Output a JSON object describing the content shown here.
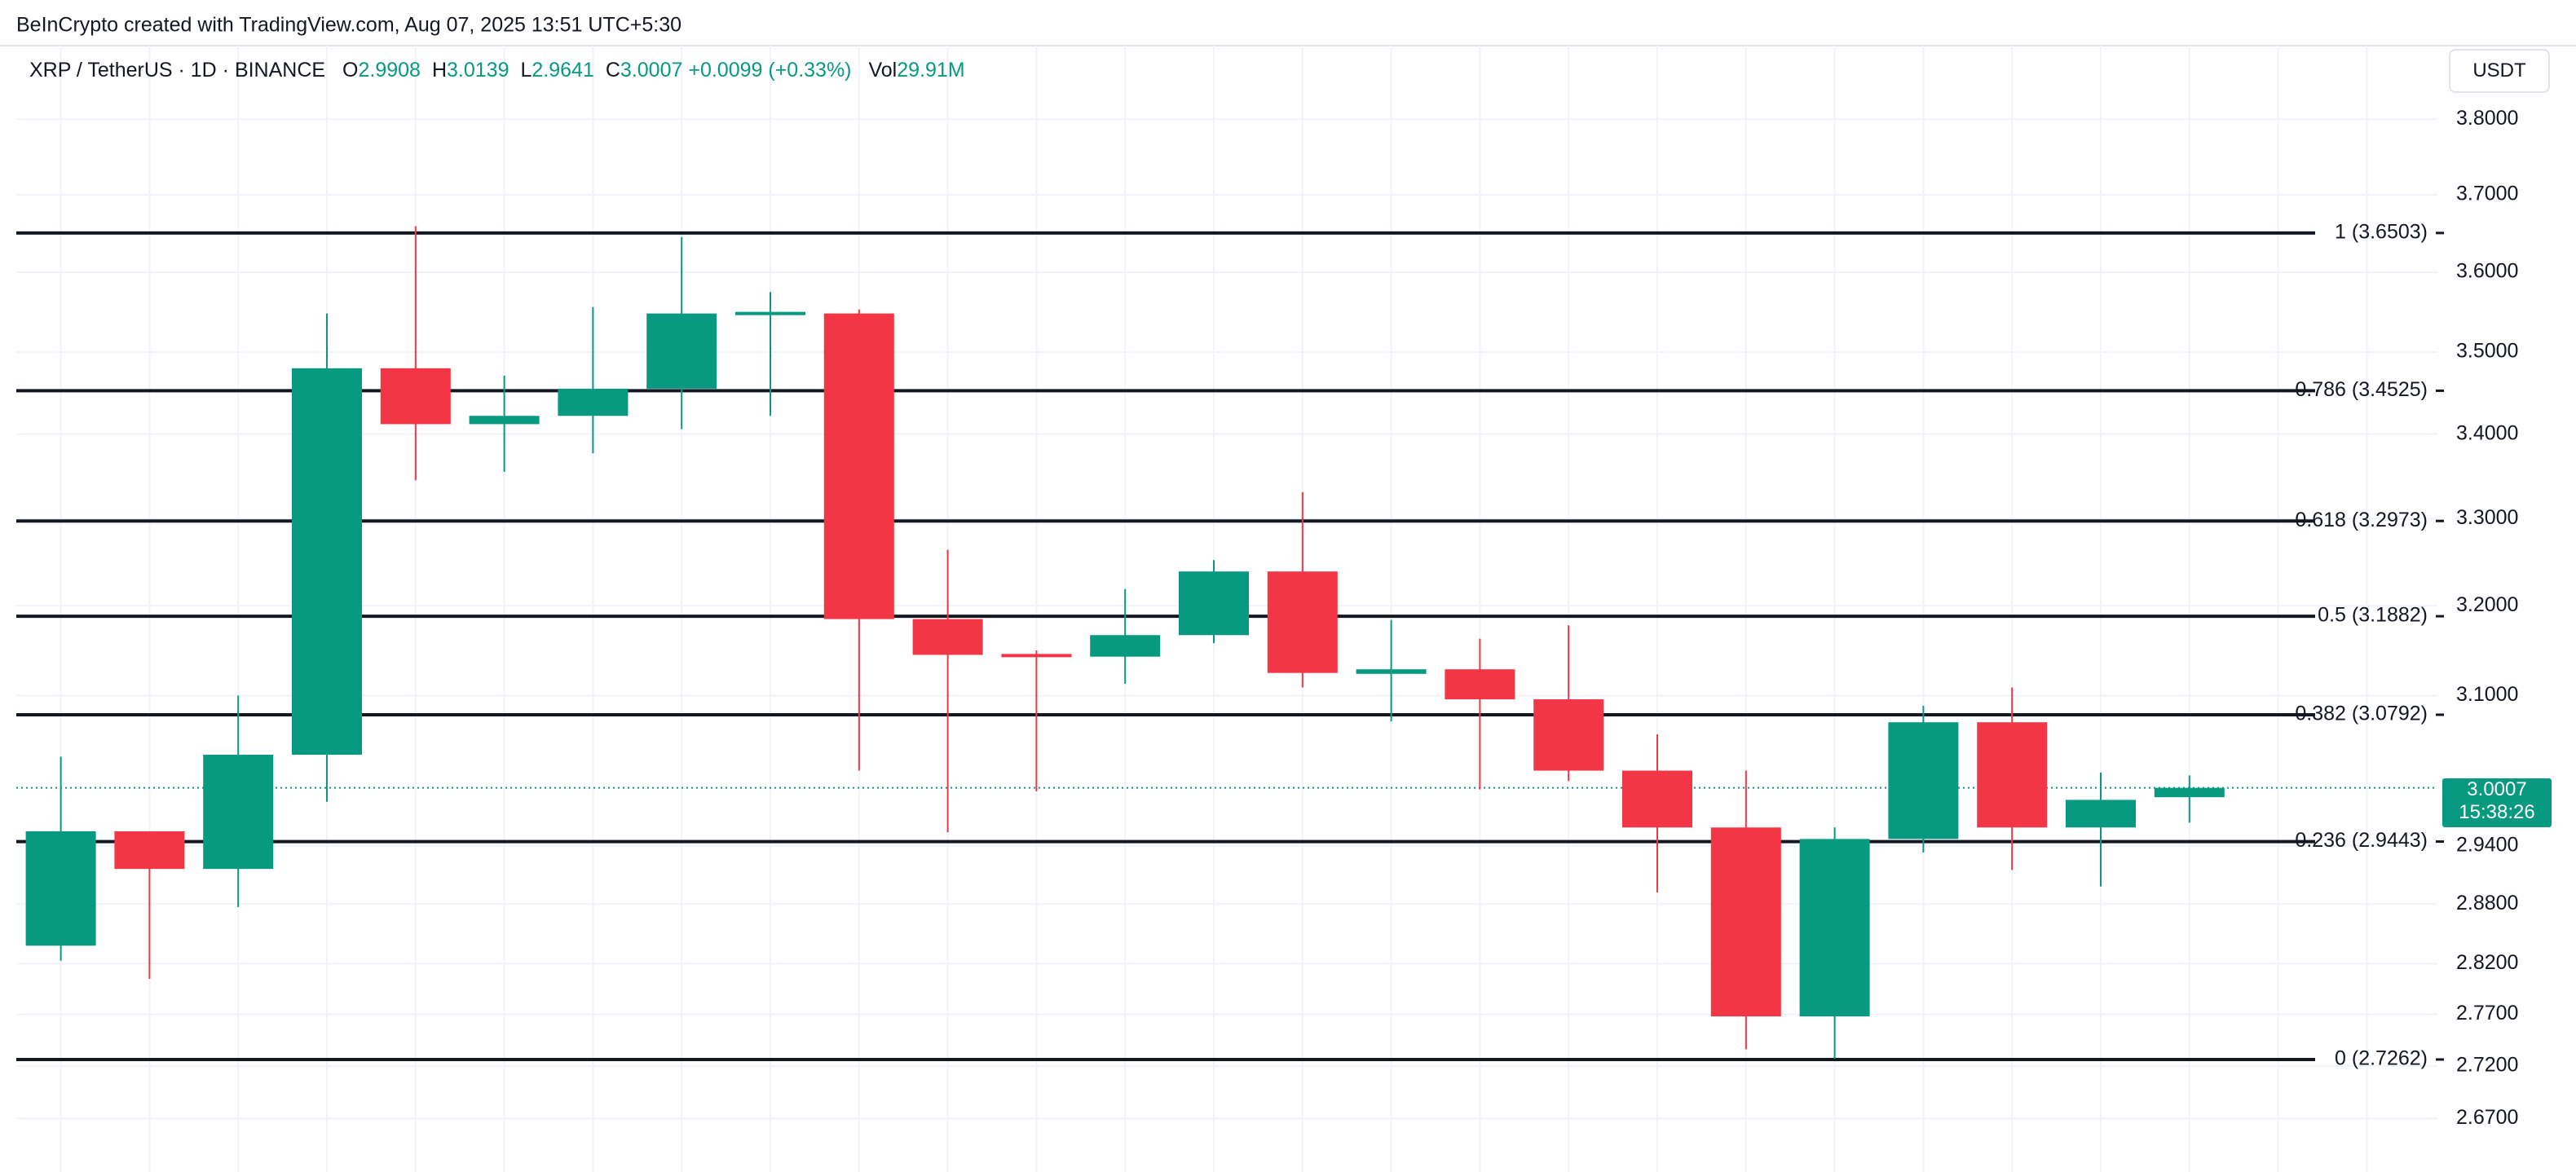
{
  "chart_data": {
    "type": "candlestick",
    "title": "BeInCrypto created with TradingView.com, Aug 07, 2025 13:51 UTC+5:30",
    "symbol": "XRP / TetherUS · 1D · BINANCE",
    "ohlc_legend": [
      {
        "key": "O",
        "value": 2.9908
      },
      {
        "key": "H",
        "value": 3.0139
      },
      {
        "key": "L",
        "value": 2.9641
      },
      {
        "key": "C",
        "value": 3.0007
      }
    ],
    "change": {
      "value": 0.0099,
      "label": "+0.0099"
    },
    "change_pct": {
      "value": 0.33,
      "label": "(+0.33%)"
    },
    "volume": {
      "key": "Vol",
      "value": 29910000,
      "label": "29.91M"
    },
    "currency": "USDT",
    "last_price": 3.0007,
    "countdown": "15:38:26",
    "up_color": "#089981",
    "down_color": "#f23645",
    "open": [
      2.838,
      2.955,
      2.916,
      3.036,
      3.48,
      3.412,
      3.422,
      3.455,
      3.548,
      3.548,
      3.185,
      3.146,
      3.143,
      3.167,
      3.239,
      3.124,
      3.129,
      3.096,
      3.019,
      2.959,
      2.768,
      2.947,
      3.071,
      2.959,
      2.9908
    ],
    "high": [
      3.034,
      2.955,
      3.1,
      3.548,
      3.659,
      3.471,
      3.556,
      3.645,
      3.575,
      3.553,
      3.264,
      3.15,
      3.219,
      3.252,
      3.331,
      3.184,
      3.163,
      3.178,
      3.058,
      3.019,
      2.959,
      3.089,
      3.109,
      3.017,
      3.0139
    ],
    "low": [
      2.823,
      2.805,
      2.877,
      2.986,
      3.345,
      3.355,
      3.377,
      3.406,
      3.422,
      3.019,
      2.954,
      2.997,
      3.113,
      3.158,
      3.109,
      3.072,
      2.999,
      3.008,
      2.892,
      2.736,
      2.727,
      2.933,
      2.915,
      2.898,
      2.9641
    ],
    "close": [
      2.955,
      2.916,
      3.036,
      3.48,
      3.412,
      3.422,
      3.455,
      3.548,
      3.55,
      3.185,
      3.145,
      3.143,
      3.167,
      3.239,
      3.125,
      3.129,
      3.096,
      3.019,
      2.959,
      2.768,
      2.947,
      3.071,
      2.959,
      2.988,
      3.0007
    ],
    "fib_levels": [
      {
        "value": 3.6503,
        "label": "1 (3.6503)"
      },
      {
        "value": 3.4525,
        "label": "0.786 (3.4525)"
      },
      {
        "value": 3.2973,
        "label": "0.618 (3.2973)"
      },
      {
        "value": 3.1882,
        "label": "0.5 (3.1882)"
      },
      {
        "value": 3.0792,
        "label": "0.382 (3.0792)"
      },
      {
        "value": 2.9443,
        "label": "0.236 (2.9443)"
      },
      {
        "value": 2.7262,
        "label": "0 (2.7262)"
      }
    ],
    "log_scale": true,
    "grid": true,
    "ylim": [
      2.62,
      3.9
    ],
    "yticks": [
      {
        "value": 3.8,
        "label": "3.8000"
      },
      {
        "value": 3.7,
        "label": "3.7000"
      },
      {
        "value": 3.6,
        "label": "3.6000"
      },
      {
        "value": 3.5,
        "label": "3.5000"
      },
      {
        "value": 3.4,
        "label": "3.4000"
      },
      {
        "value": 3.3,
        "label": "3.3000"
      },
      {
        "value": 3.2,
        "label": "3.2000"
      },
      {
        "value": 3.1,
        "label": "3.1000"
      },
      {
        "value": 2.94,
        "label": "2.9400"
      },
      {
        "value": 2.88,
        "label": "2.8800"
      },
      {
        "value": 2.82,
        "label": "2.8200"
      },
      {
        "value": 2.77,
        "label": "2.7700"
      },
      {
        "value": 2.72,
        "label": "2.7200"
      },
      {
        "value": 2.67,
        "label": "2.6700"
      }
    ]
  }
}
